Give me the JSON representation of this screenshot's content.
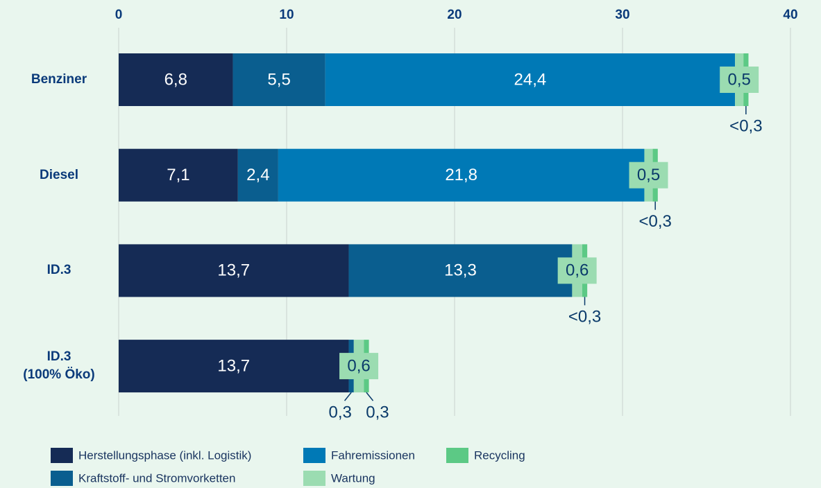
{
  "chart_data": {
    "type": "bar",
    "orientation": "horizontal",
    "stacked": true,
    "categories": [
      "Benziner",
      "Diesel",
      "ID.3",
      "ID.3\n(100% Öko)"
    ],
    "series": [
      {
        "name": "Herstellungsphase (inkl. Logistik)",
        "color": "#152b55",
        "values": [
          6.8,
          7.1,
          13.7,
          13.7
        ],
        "value_labels": [
          "6,8",
          "7,1",
          "13,7",
          "13,7"
        ]
      },
      {
        "name": "Kraftstoff- und Stromvorketten",
        "color": "#0a5e8f",
        "values": [
          5.5,
          2.4,
          13.3,
          0.3
        ],
        "value_labels": [
          "5,5",
          "2,4",
          "13,3",
          "0,3"
        ]
      },
      {
        "name": "Fahremissionen",
        "color": "#0079b6",
        "values": [
          24.4,
          21.8,
          null,
          null
        ],
        "value_labels": [
          "24,4",
          "21,8",
          null,
          null
        ]
      },
      {
        "name": "Wartung",
        "color": "#9bdcb1",
        "values": [
          0.5,
          0.5,
          0.6,
          0.6
        ],
        "value_labels": [
          "0,5",
          "0,5",
          "0,6",
          "0,6"
        ]
      },
      {
        "name": "Recycling",
        "color": "#5cc985",
        "values": [
          0.3,
          0.3,
          0.3,
          0.3
        ],
        "value_labels": [
          "<0,3",
          "<0,3",
          "<0,3",
          "0,3"
        ]
      }
    ],
    "xlim": [
      0,
      40
    ],
    "xticks": [
      0,
      10,
      20,
      30,
      40
    ],
    "grid": true,
    "legend": "bottom"
  }
}
